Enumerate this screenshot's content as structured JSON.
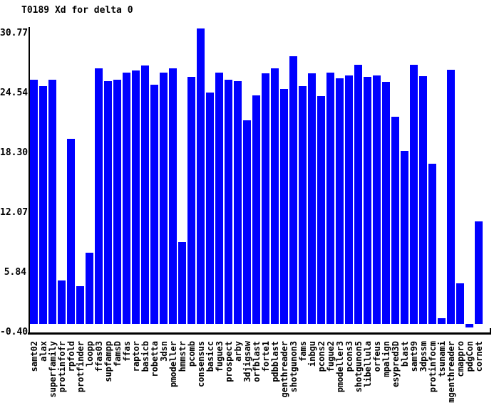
{
  "title": "T0189 Xd for delta 0",
  "colors": {
    "bar": "#0000ff",
    "axis": "#000000",
    "text": "#000000",
    "background": "#ffffff"
  },
  "chart_data": {
    "type": "bar",
    "title": "T0189 Xd for delta 0",
    "xlabel": "",
    "ylabel": "",
    "grid": false,
    "legend": null,
    "ylim": [
      -0.4,
      30.77
    ],
    "y_tick_labels": [
      "30.77",
      "24.54",
      "18.30",
      "12.07",
      "5.84",
      "-0.40"
    ],
    "y_tick_values": [
      30.77,
      24.54,
      18.3,
      12.07,
      5.84,
      -0.4
    ],
    "bar_color": "#0000ff",
    "categories": [
      "samt02",
      "alax",
      "superfamily",
      "protinfofr",
      "rpfold",
      "protfinder",
      "loopp",
      "ffas03",
      "supfampp",
      "famsD",
      "ffas",
      "raptor",
      "basicb",
      "robetta",
      "3dsn",
      "pmodeller",
      "hmmstr",
      "pcomb",
      "consensus",
      "basicc",
      "fugue3",
      "prospect",
      "arby",
      "3djigsaw",
      "orfblast",
      "forte1",
      "pdbblast",
      "genthreader",
      "shotgunon3",
      "fams",
      "inbgu",
      "pcons2",
      "fugue2",
      "pmodeller3",
      "pcons3",
      "shotgunon5",
      "libellula",
      "orfeus",
      "mpalign",
      "esypred3D",
      "blast",
      "samt99",
      "3dpssm",
      "protinfocm",
      "tsunami",
      "mgenthreader",
      "cmappro",
      "pdgCon",
      "cornet"
    ],
    "values": [
      25.4,
      24.8,
      25.4,
      4.5,
      19.3,
      3.9,
      7.4,
      26.6,
      25.3,
      25.4,
      26.2,
      26.4,
      26.9,
      24.9,
      26.2,
      26.6,
      8.5,
      25.7,
      30.77,
      24.1,
      26.2,
      25.4,
      25.3,
      21.2,
      23.8,
      26.1,
      26.6,
      24.5,
      27.9,
      24.8,
      26.1,
      23.7,
      26.2,
      25.6,
      25.9,
      27.0,
      25.7,
      25.9,
      25.2,
      21.6,
      18.0,
      27.0,
      25.8,
      16.7,
      0.6,
      26.5,
      4.2,
      -0.4,
      10.7
    ]
  }
}
